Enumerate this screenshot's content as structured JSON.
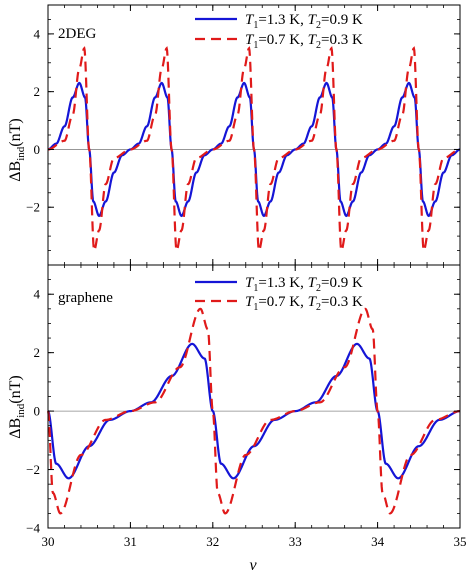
{
  "chart_data": [
    {
      "type": "line",
      "panel_label": "2DEG",
      "ylabel_main": "ΔB",
      "ylabel_sub": "ind",
      "ylabel_unit": "(nT)",
      "xlim": [
        30,
        35
      ],
      "ylim": [
        -4,
        5
      ],
      "yticks": [
        -2,
        0,
        2,
        4
      ],
      "xticks": [
        30,
        31,
        32,
        33,
        34,
        35
      ],
      "show_xtick_labels": false,
      "legend_position": "top-right",
      "series": [
        {
          "name": "T1=1.3 K, T2=0.9 K",
          "legend": {
            "p1": "T",
            "s1": "1",
            "v1": "=1.3 K, ",
            "p2": "T",
            "s2": "2",
            "v2": "=0.9 K"
          },
          "color": "#1515d6",
          "dash": "solid",
          "oscillation_period": 1.0,
          "zero_crossings": [
            30.5,
            31.5,
            32.5,
            33.5,
            34.5
          ],
          "amplitude": 2.3,
          "x": [
            30.0,
            30.1,
            30.2,
            30.3,
            30.38,
            30.45,
            30.5,
            30.55,
            30.62,
            30.7,
            30.8,
            30.9,
            31.0
          ],
          "y": [
            0.0,
            0.2,
            0.8,
            1.8,
            2.3,
            1.8,
            0.0,
            -1.8,
            -2.3,
            -1.8,
            -0.8,
            -0.2,
            0.0
          ]
        },
        {
          "name": "T1=0.7 K, T2=0.3 K",
          "legend": {
            "p1": "T",
            "s1": "1",
            "v1": "=0.7 K, ",
            "p2": "T",
            "s2": "2",
            "v2": "=0.3 K"
          },
          "color": "#e01a1a",
          "dash": "dashed",
          "oscillation_period": 1.0,
          "zero_crossings": [
            30.5,
            31.5,
            32.5,
            33.5,
            34.5
          ],
          "amplitude": 3.5,
          "x": [
            30.0,
            30.2,
            30.3,
            30.38,
            30.44,
            30.5,
            30.56,
            30.62,
            30.7,
            30.8,
            31.0
          ],
          "y": [
            0.0,
            0.3,
            1.2,
            2.8,
            3.5,
            0.0,
            -3.5,
            -2.8,
            -1.2,
            -0.3,
            0.0
          ]
        }
      ]
    },
    {
      "type": "line",
      "panel_label": "graphene",
      "ylabel_main": "ΔB",
      "ylabel_sub": "ind",
      "ylabel_unit": "(nT)",
      "xlim": [
        30,
        35
      ],
      "ylim": [
        -4,
        5
      ],
      "yticks": [
        -4,
        -2,
        0,
        2,
        4
      ],
      "xticks": [
        30,
        31,
        32,
        33,
        34,
        35
      ],
      "xtick_labels": [
        "30",
        "31",
        "32",
        "33",
        "34",
        "35"
      ],
      "xlabel": "ν",
      "legend_position": "top-right",
      "series": [
        {
          "name": "T1=1.3 K, T2=0.9 K",
          "legend": {
            "p1": "T",
            "s1": "1",
            "v1": "=1.3 K, ",
            "p2": "T",
            "s2": "2",
            "v2": "=0.9 K"
          },
          "color": "#1515d6",
          "dash": "solid",
          "oscillation_period": 2.0,
          "zero_crossings": [
            30.0,
            32.0,
            34.0
          ],
          "amplitude": 2.3,
          "x": [
            30.0,
            30.1,
            30.25,
            30.5,
            30.75,
            31.0,
            31.25,
            31.5,
            31.75,
            31.9,
            32.0
          ],
          "y": [
            0.0,
            -1.8,
            -2.3,
            -1.2,
            -0.3,
            0.0,
            0.3,
            1.2,
            2.3,
            1.8,
            0.0
          ]
        },
        {
          "name": "T1=0.7 K, T2=0.3 K",
          "legend": {
            "p1": "T",
            "s1": "1",
            "v1": "=0.7 K, ",
            "p2": "T",
            "s2": "2",
            "v2": "=0.3 K"
          },
          "color": "#e01a1a",
          "dash": "dashed",
          "oscillation_period": 2.0,
          "zero_crossings": [
            30.0,
            32.0,
            34.0
          ],
          "amplitude": 3.5,
          "x": [
            30.0,
            30.06,
            30.15,
            30.4,
            30.7,
            31.0,
            31.3,
            31.6,
            31.85,
            31.94,
            32.0
          ],
          "y": [
            0.0,
            -2.8,
            -3.5,
            -1.5,
            -0.3,
            0.0,
            0.3,
            1.5,
            3.5,
            2.8,
            0.0
          ]
        }
      ]
    }
  ]
}
